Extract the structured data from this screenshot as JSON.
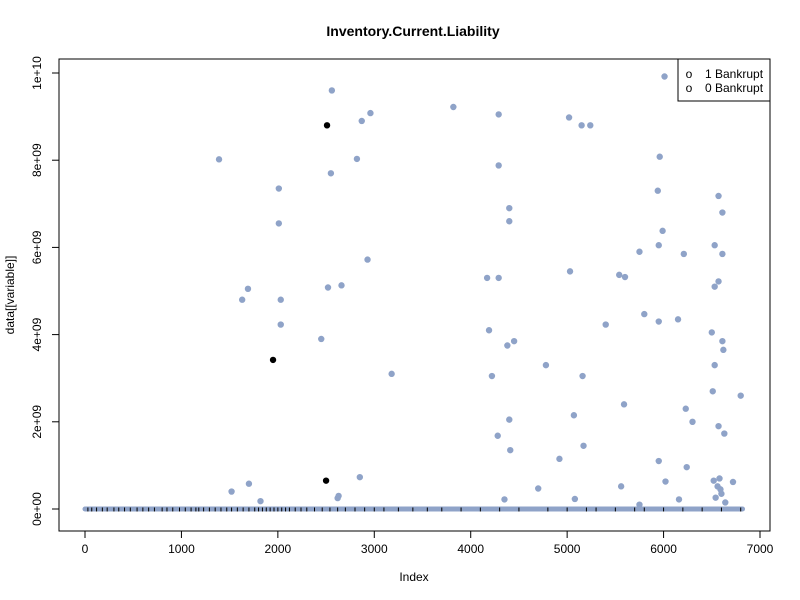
{
  "chart_data": {
    "type": "scatter",
    "title": "Inventory.Current.Liability",
    "xlabel": "Index",
    "ylabel": "data[[variable]]",
    "xlim": [
      -180,
      7050
    ],
    "ylim": [
      0,
      10000000000
    ],
    "x_ticks": [
      0,
      1000,
      2000,
      3000,
      4000,
      5000,
      6000,
      7000
    ],
    "x_tick_labels": [
      "0",
      "1000",
      "2000",
      "3000",
      "4000",
      "5000",
      "6000",
      "7000"
    ],
    "y_ticks": [
      0,
      2000000000,
      4000000000,
      6000000000,
      8000000000,
      10000000000
    ],
    "y_tick_labels": [
      "0e+00",
      "2e+09",
      "4e+09",
      "6e+09",
      "8e+09",
      "1e+10"
    ],
    "grid": false,
    "legend_position": "top-right",
    "legend": [
      {
        "symbol": "o",
        "label": "1 Bankrupt"
      },
      {
        "symbol": "o",
        "label": "0 Bankrupt"
      }
    ],
    "series": [
      {
        "color": "#8fa3c8",
        "points": [
          [
            1390,
            8020000000
          ],
          [
            1520,
            400000000
          ],
          [
            1630,
            4800000000
          ],
          [
            1690,
            5050000000
          ],
          [
            1700,
            580000000
          ],
          [
            1820,
            180000000
          ],
          [
            2010,
            7350000000
          ],
          [
            2010,
            6550000000
          ],
          [
            2030,
            4800000000
          ],
          [
            2030,
            4230000000
          ],
          [
            2450,
            3900000000
          ],
          [
            2520,
            5080000000
          ],
          [
            2550,
            7700000000
          ],
          [
            2560,
            9600000000
          ],
          [
            2620,
            250000000
          ],
          [
            2630,
            300000000
          ],
          [
            2660,
            5130000000
          ],
          [
            2820,
            8030000000
          ],
          [
            2850,
            730000000
          ],
          [
            2870,
            8900000000
          ],
          [
            2930,
            5720000000
          ],
          [
            2960,
            9080000000
          ],
          [
            3180,
            3100000000
          ],
          [
            3820,
            9220000000
          ],
          [
            4170,
            5300000000
          ],
          [
            4190,
            4100000000
          ],
          [
            4220,
            3050000000
          ],
          [
            4280,
            1680000000
          ],
          [
            4290,
            9050000000
          ],
          [
            4290,
            7880000000
          ],
          [
            4290,
            5300000000
          ],
          [
            4350,
            220000000
          ],
          [
            4380,
            3750000000
          ],
          [
            4400,
            6900000000
          ],
          [
            4400,
            6600000000
          ],
          [
            4400,
            2050000000
          ],
          [
            4410,
            1350000000
          ],
          [
            4450,
            3850000000
          ],
          [
            4700,
            470000000
          ],
          [
            4780,
            3300000000
          ],
          [
            4920,
            1150000000
          ],
          [
            5020,
            8980000000
          ],
          [
            5030,
            5450000000
          ],
          [
            5070,
            2150000000
          ],
          [
            5080,
            230000000
          ],
          [
            5150,
            8800000000
          ],
          [
            5160,
            3050000000
          ],
          [
            5170,
            1450000000
          ],
          [
            5240,
            8800000000
          ],
          [
            5400,
            4230000000
          ],
          [
            5540,
            5370000000
          ],
          [
            5560,
            520000000
          ],
          [
            5590,
            2400000000
          ],
          [
            5600,
            5320000000
          ],
          [
            5750,
            5900000000
          ],
          [
            5750,
            100000000
          ],
          [
            5800,
            4470000000
          ],
          [
            5940,
            7300000000
          ],
          [
            5950,
            6050000000
          ],
          [
            5950,
            4300000000
          ],
          [
            5950,
            1100000000
          ],
          [
            5960,
            8080000000
          ],
          [
            5990,
            6380000000
          ],
          [
            6010,
            9920000000
          ],
          [
            6020,
            630000000
          ],
          [
            6150,
            4350000000
          ],
          [
            6160,
            220000000
          ],
          [
            6210,
            5850000000
          ],
          [
            6230,
            2300000000
          ],
          [
            6240,
            960000000
          ],
          [
            6300,
            2000000000
          ],
          [
            6500,
            4050000000
          ],
          [
            6510,
            2700000000
          ],
          [
            6520,
            650000000
          ],
          [
            6530,
            6050000000
          ],
          [
            6530,
            5100000000
          ],
          [
            6530,
            3300000000
          ],
          [
            6540,
            260000000
          ],
          [
            6560,
            520000000
          ],
          [
            6570,
            7180000000
          ],
          [
            6570,
            5220000000
          ],
          [
            6570,
            1900000000
          ],
          [
            6580,
            700000000
          ],
          [
            6590,
            450000000
          ],
          [
            6600,
            350000000
          ],
          [
            6610,
            6800000000
          ],
          [
            6610,
            5850000000
          ],
          [
            6610,
            3850000000
          ],
          [
            6620,
            3650000000
          ],
          [
            6630,
            1730000000
          ],
          [
            6640,
            150000000
          ],
          [
            6720,
            620000000
          ],
          [
            6800,
            2600000000
          ]
        ]
      },
      {
        "color": "#000000",
        "points": [
          [
            1950,
            3420000000
          ],
          [
            2500,
            650000000
          ],
          [
            2510,
            8800000000
          ]
        ]
      }
    ],
    "baseline_band": {
      "x_start": 0,
      "x_end": 6819,
      "value": 0,
      "color": "#8fa3c8",
      "dark_marks_x": [
        30,
        70,
        120,
        180,
        230,
        300,
        350,
        410,
        470,
        540,
        600,
        660,
        720,
        800,
        850,
        910,
        980,
        1040,
        1100,
        1150,
        1180,
        1230,
        1290,
        1350,
        1410,
        1470,
        1520,
        1580,
        1640,
        1700,
        1760,
        1800,
        1840,
        1880,
        1920,
        1960,
        2000,
        2040,
        2080,
        2120,
        2180,
        2240,
        2300,
        2380,
        2460,
        2540,
        2620,
        2700,
        2800,
        2900,
        3000,
        3100,
        3250,
        3400,
        3550,
        3700,
        3900,
        4100,
        4300,
        4500,
        4800,
        5000,
        5200,
        5300,
        5500,
        5700,
        5800,
        6000,
        6200,
        6400,
        6600,
        6800
      ]
    }
  }
}
